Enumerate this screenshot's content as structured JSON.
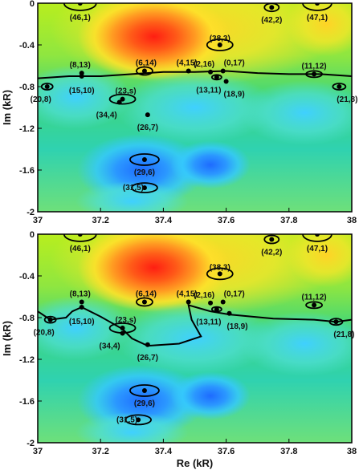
{
  "chart_data": [
    {
      "type": "heatmap",
      "title": "",
      "xlabel": "",
      "ylabel": "Im (kR)",
      "xlim": [
        37,
        38
      ],
      "ylim": [
        -2,
        0
      ],
      "x_ticks": [
        "37",
        "37.2",
        "37.4",
        "37.6",
        "37.8",
        "38"
      ],
      "y_ticks": [
        "0",
        "-0.4",
        "-0.8",
        "-1.2",
        "-1.6",
        "-2"
      ],
      "colormap": [
        "#1e6bff",
        "#35c8ff",
        "#2fd27a",
        "#b8ee1e",
        "#ffe12a",
        "#ff7a1c",
        "#ff1e12"
      ],
      "resonances": [
        {
          "label": "(46,1)",
          "re": 37.135,
          "im": 0.0
        },
        {
          "label": "(42,2)",
          "re": 37.745,
          "im": -0.04
        },
        {
          "label": "(47,1)",
          "re": 37.89,
          "im": 0.0
        },
        {
          "label": "(38,3)",
          "re": 37.58,
          "im": -0.4
        },
        {
          "label": "(8,13)",
          "re": 37.14,
          "im": -0.67
        },
        {
          "label": "(6,14)",
          "re": 37.34,
          "im": -0.65
        },
        {
          "label": "(4,15)",
          "re": 37.48,
          "im": -0.65
        },
        {
          "label": "(2,16)",
          "re": 37.55,
          "im": -0.66
        },
        {
          "label": "(0,17)",
          "re": 37.59,
          "im": -0.65
        },
        {
          "label": "(11,12)",
          "re": 37.88,
          "im": -0.68
        },
        {
          "label": "(15,10)",
          "re": 37.14,
          "im": -0.7
        },
        {
          "label": "(13,11)",
          "re": 37.57,
          "im": -0.71
        },
        {
          "label": "(18,9)",
          "re": 37.6,
          "im": -0.75
        },
        {
          "label": "(20,8)",
          "re": 37.03,
          "im": -0.8
        },
        {
          "label": "(21,8)",
          "re": 37.96,
          "im": -0.8
        },
        {
          "label": "(23,s)",
          "re": 37.27,
          "im": -0.92
        },
        {
          "label": "(34,4)",
          "re": 37.26,
          "im": -0.95
        },
        {
          "label": "(26,7)",
          "re": 37.35,
          "im": -1.07
        },
        {
          "label": "(29,6)",
          "re": 37.34,
          "im": -1.5
        },
        {
          "label": "(31,5)",
          "re": 37.34,
          "im": -1.77
        }
      ],
      "curve": [
        [
          37,
          -0.72
        ],
        [
          37.1,
          -0.7
        ],
        [
          37.2,
          -0.7
        ],
        [
          37.3,
          -0.68
        ],
        [
          37.4,
          -0.66
        ],
        [
          37.5,
          -0.66
        ],
        [
          37.6,
          -0.65
        ],
        [
          37.7,
          -0.67
        ],
        [
          37.8,
          -0.68
        ],
        [
          37.9,
          -0.68
        ],
        [
          38,
          -0.7
        ]
      ]
    },
    {
      "type": "heatmap",
      "title": "",
      "xlabel": "Re (kR)",
      "ylabel": "Im (kR)",
      "xlim": [
        37,
        38
      ],
      "ylim": [
        -2,
        0
      ],
      "x_ticks": [
        "37",
        "37.2",
        "37.4",
        "37.6",
        "37.8",
        "38"
      ],
      "y_ticks": [
        "0",
        "-0.4",
        "-0.8",
        "-1.2",
        "-1.6",
        "-2"
      ],
      "colormap": [
        "#1e6bff",
        "#35c8ff",
        "#2fd27a",
        "#b8ee1e",
        "#ffe12a",
        "#ff7a1c",
        "#ff1e12"
      ],
      "resonances": [
        {
          "label": "(46,1)",
          "re": 37.135,
          "im": 0.0
        },
        {
          "label": "(42,2)",
          "re": 37.745,
          "im": -0.05
        },
        {
          "label": "(47,1)",
          "re": 37.89,
          "im": 0.0
        },
        {
          "label": "(38,3)",
          "re": 37.58,
          "im": -0.38
        },
        {
          "label": "(8,13)",
          "re": 37.14,
          "im": -0.65
        },
        {
          "label": "(6,14)",
          "re": 37.34,
          "im": -0.65
        },
        {
          "label": "(4,15)",
          "re": 37.48,
          "im": -0.65
        },
        {
          "label": "(2,16)",
          "re": 37.55,
          "im": -0.66
        },
        {
          "label": "(0,17)",
          "re": 37.59,
          "im": -0.65
        },
        {
          "label": "(11,12)",
          "re": 37.88,
          "im": -0.68
        },
        {
          "label": "(15,10)",
          "re": 37.14,
          "im": -0.7
        },
        {
          "label": "(13,11)",
          "re": 37.57,
          "im": -0.72
        },
        {
          "label": "(18,9)",
          "re": 37.61,
          "im": -0.76
        },
        {
          "label": "(20,8)",
          "re": 37.04,
          "im": -0.82
        },
        {
          "label": "(21,8)",
          "re": 37.95,
          "im": -0.84
        },
        {
          "label": "(23,s)",
          "re": 37.27,
          "im": -0.9
        },
        {
          "label": "(34,4)",
          "re": 37.27,
          "im": -0.95
        },
        {
          "label": "(26,7)",
          "re": 37.35,
          "im": -1.06
        },
        {
          "label": "(29,6)",
          "re": 37.34,
          "im": -1.5
        },
        {
          "label": "(31,5)",
          "re": 37.32,
          "im": -1.78
        }
      ],
      "curve": [
        [
          37,
          -0.74
        ],
        [
          37.04,
          -0.82
        ],
        [
          37.09,
          -0.8
        ],
        [
          37.11,
          -0.74
        ],
        [
          37.14,
          -0.7
        ],
        [
          37.2,
          -0.79
        ],
        [
          37.27,
          -0.91
        ],
        [
          37.3,
          -1.0
        ],
        [
          37.35,
          -1.07
        ],
        [
          37.45,
          -1.05
        ],
        [
          37.52,
          -0.98
        ],
        [
          37.49,
          -0.82
        ],
        [
          37.48,
          -0.68
        ],
        [
          37.55,
          -0.74
        ],
        [
          37.61,
          -0.77
        ],
        [
          37.75,
          -0.81
        ],
        [
          37.88,
          -0.82
        ],
        [
          37.95,
          -0.84
        ],
        [
          38,
          -0.82
        ]
      ]
    }
  ]
}
